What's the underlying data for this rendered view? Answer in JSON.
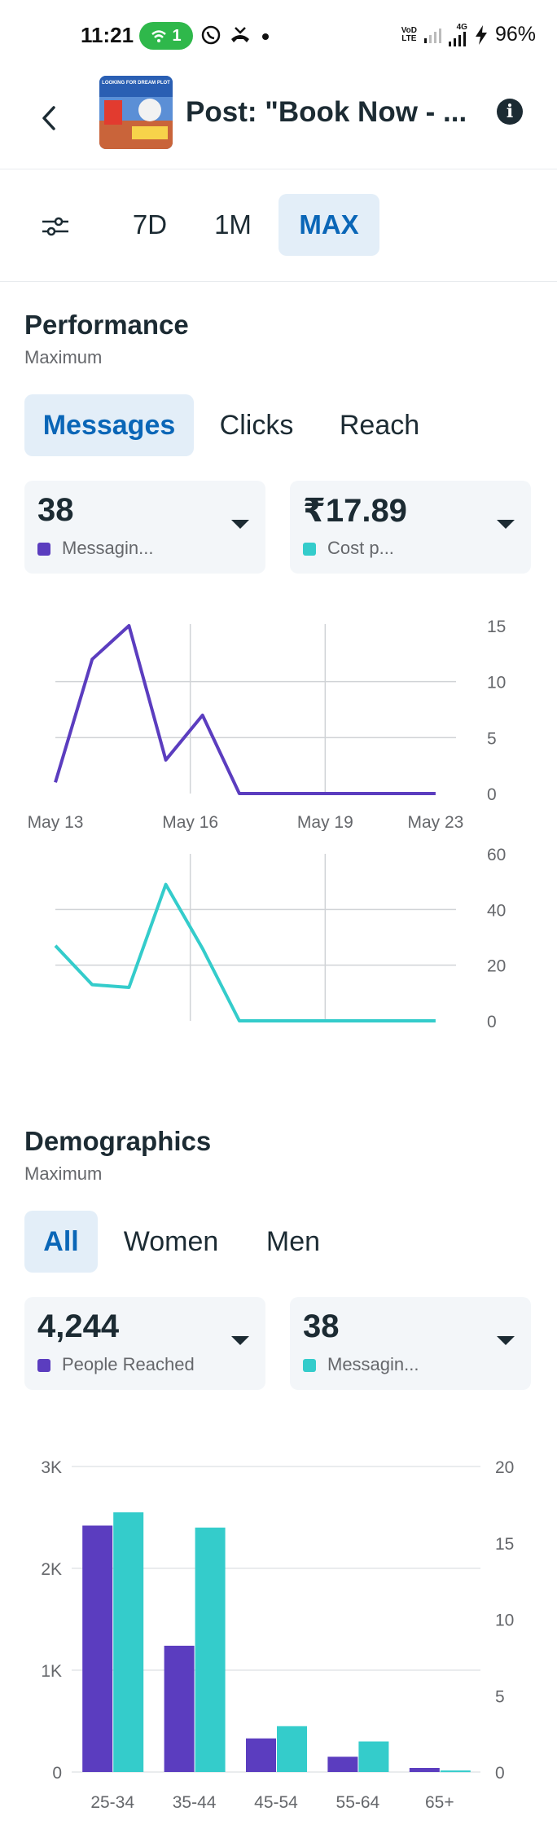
{
  "status_bar": {
    "time": "11:21",
    "hotspot_count": "1",
    "battery": "96%",
    "network": "4G",
    "carrier_line1": "VoD",
    "carrier_line2": "LTE"
  },
  "header": {
    "title": "Post: \"Book Now - ...",
    "thumbnail_caption": "LOOKING FOR DREAM PLOT"
  },
  "range": {
    "options": [
      "7D",
      "1M",
      "MAX"
    ],
    "selected": "MAX"
  },
  "performance": {
    "title": "Performance",
    "subtitle": "Maximum",
    "tabs": [
      "Messages",
      "Clicks",
      "Reach"
    ],
    "selected_tab": "Messages",
    "metric1": {
      "value": "38",
      "label": "Messagin..."
    },
    "metric2": {
      "value": "₹17.89",
      "label": "Cost p..."
    }
  },
  "demographics": {
    "title": "Demographics",
    "subtitle": "Maximum",
    "tabs": [
      "All",
      "Women",
      "Men"
    ],
    "selected_tab": "All",
    "metric1": {
      "value": "4,244",
      "label": "People Reached"
    },
    "metric2": {
      "value": "38",
      "label": "Messagin..."
    }
  },
  "colors": {
    "purple": "#5b3dbf",
    "teal": "#34cccb",
    "accent": "#0a66b7",
    "tab_active_bg": "#e3eef8"
  },
  "chart_data": [
    {
      "type": "line",
      "x_tick_labels": [
        "May 13",
        "May 16",
        "May 19",
        "May 23"
      ],
      "ylim": [
        0,
        15
      ],
      "y_ticks": [
        "0",
        "5",
        "10",
        "15"
      ],
      "grid": true,
      "series": [
        {
          "color": "#5b3dbf",
          "points": [
            [
              0,
              1
            ],
            [
              0.9,
              12
            ],
            [
              1.8,
              15
            ],
            [
              2.7,
              3
            ],
            [
              3.6,
              7
            ],
            [
              4.5,
              0
            ],
            [
              5.5,
              0
            ],
            [
              6.5,
              0
            ],
            [
              7.5,
              0
            ],
            [
              8.5,
              0
            ],
            [
              9.3,
              0
            ]
          ]
        }
      ]
    },
    {
      "type": "line",
      "ylim": [
        0,
        60
      ],
      "y_ticks": [
        "0",
        "20",
        "40",
        "60"
      ],
      "grid": true,
      "series": [
        {
          "color": "#34cccb",
          "points": [
            [
              0,
              27
            ],
            [
              0.9,
              13
            ],
            [
              1.8,
              12
            ],
            [
              2.7,
              49
            ],
            [
              3.6,
              26
            ],
            [
              4.5,
              0
            ],
            [
              5.5,
              0
            ],
            [
              6.5,
              0
            ],
            [
              7.5,
              0
            ],
            [
              8.5,
              0
            ],
            [
              9.3,
              0
            ]
          ]
        }
      ]
    },
    {
      "type": "bar",
      "categories": [
        "25-34",
        "35-44",
        "45-54",
        "55-64",
        "65+"
      ],
      "left_axis": {
        "ylim": [
          0,
          3000
        ],
        "ticks": [
          "0",
          "1K",
          "2K",
          "3K"
        ]
      },
      "right_axis": {
        "ylim": [
          0,
          20
        ],
        "ticks": [
          "0",
          "5",
          "10",
          "15",
          "20"
        ]
      },
      "series": [
        {
          "name": "People Reached",
          "axis": "left",
          "color": "#5b3dbf",
          "values": [
            2420,
            1240,
            330,
            150,
            40
          ]
        },
        {
          "name": "Messagin...",
          "axis": "right",
          "color": "#34cccb",
          "values": [
            17,
            16,
            3,
            2,
            0.1
          ]
        }
      ]
    }
  ]
}
